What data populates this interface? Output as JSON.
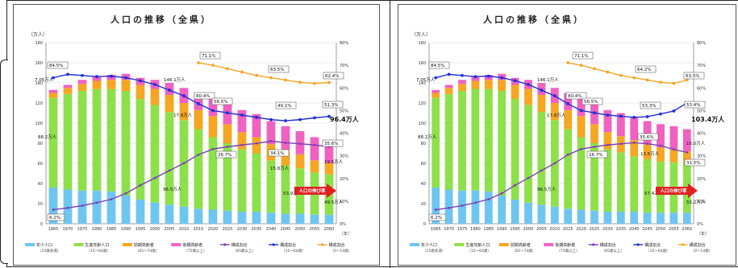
{
  "chart_data": [
    {
      "type": "bar",
      "title": "人口の推移（全県）",
      "ylabel": "（万人）",
      "y2label": "",
      "xlabel_unit": "（年）",
      "ylim": [
        0,
        180
      ],
      "y2lim": [
        0,
        80
      ],
      "yticks": [
        "0",
        "20",
        "40",
        "60",
        "80",
        "100",
        "120",
        "140",
        "160",
        "180"
      ],
      "y2ticks": [
        "0%",
        "10%",
        "20%",
        "30%",
        "40%",
        "50%",
        "60%",
        "70%",
        "80%"
      ],
      "categories": [
        "1965",
        "1970",
        "1975",
        "1980",
        "1985",
        "1990",
        "1995",
        "2000",
        "2005",
        "2010",
        "2015",
        "2020",
        "2025",
        "2030",
        "2035",
        "2040",
        "2045",
        "2050",
        "2055",
        "2060"
      ],
      "stack_series": [
        {
          "name": "年少人口",
          "sub": "（15歳未満）",
          "color": "#6ec6f0",
          "values": [
            36,
            34,
            33,
            33,
            32,
            28,
            24,
            21,
            19,
            17,
            15,
            14,
            13,
            12,
            12,
            11,
            10,
            10,
            9,
            9
          ]
        },
        {
          "name": "生産年齢人口",
          "sub": "（15〜64歳）",
          "color": "#8ee04a",
          "values": [
            89,
            95,
            99,
            101,
            102,
            104,
            100,
            97,
            92,
            86,
            79,
            72,
            67,
            62,
            58,
            52,
            48,
            45,
            42,
            40
          ]
        },
        {
          "name": "前期高齢者",
          "sub": "（65〜74歳）",
          "color": "#f5a623",
          "values": [
            5,
            6,
            7,
            8,
            9,
            11,
            14,
            16,
            17,
            17,
            19,
            21,
            19,
            17,
            16,
            16,
            16,
            14,
            12,
            11
          ]
        },
        {
          "name": "後期高齢者",
          "sub": "（75歳以上）",
          "color": "#f062c0",
          "values": [
            3,
            3,
            4,
            4,
            5,
            6,
            7,
            9,
            12,
            15,
            17,
            18,
            20,
            22,
            23,
            23,
            23,
            23,
            23,
            23
          ]
        }
      ],
      "line_series": [
        {
          "name": "構成割合",
          "sub": "（65歳以上）",
          "color": "#7b3fb5",
          "values": [
            6.2,
            7.0,
            8.0,
            9.3,
            10.8,
            13.4,
            17.0,
            20.2,
            23.5,
            26.7,
            30.5,
            33.0,
            34.0,
            34.8,
            35.5,
            36.5,
            35.8,
            35.3,
            34.8,
            34.1
          ]
        },
        {
          "name": "構成割合",
          "sub": "（15〜64歳）",
          "color": "#1f2fd6",
          "values": [
            64.5,
            66.0,
            65.5,
            65.0,
            65.2,
            64.5,
            63.2,
            61.5,
            59.0,
            56.5,
            53.0,
            50.0,
            49.0,
            48.0,
            47.0,
            46.0,
            45.5,
            46.0,
            46.8,
            47.4
          ]
        },
        {
          "name": "構成割合",
          "sub": "（0〜14歳）",
          "color": "#f5a623",
          "values": [
            null,
            null,
            null,
            null,
            null,
            null,
            null,
            null,
            null,
            null,
            71.1,
            70.0,
            68.5,
            67.0,
            65.5,
            64.5,
            63.5,
            62.5,
            62.0,
            62.4
          ]
        }
      ],
      "annotations": [
        "84.5%",
        "7.05万人",
        "88.2万人",
        "6.2%",
        "146.1万人",
        "80.4%",
        "56.5%",
        "17.8万人",
        "26.7%",
        "96.5万人",
        "71.1%",
        "63.5%",
        "62.4%",
        "49.1%",
        "51.3%",
        "96.4万人",
        "34.1%",
        "35.6%",
        "15.8万人",
        "19.5万人",
        "53.9万人",
        "49.5万人"
      ],
      "callout": "人口の伸び率"
    },
    {
      "type": "bar",
      "title": "人口の推移（全県）",
      "ylabel": "（万人）",
      "y2label": "",
      "xlabel_unit": "（年）",
      "ylim": [
        0,
        180
      ],
      "y2lim": [
        0,
        80
      ],
      "yticks": [
        "0",
        "20",
        "40",
        "60",
        "80",
        "100",
        "120",
        "140",
        "160",
        "180"
      ],
      "y2ticks": [
        "0%",
        "10%",
        "20%",
        "30%",
        "40%",
        "50%",
        "60%",
        "70%",
        "80%"
      ],
      "categories": [
        "1965",
        "1970",
        "1975",
        "1980",
        "1985",
        "1990",
        "1995",
        "2000",
        "2005",
        "2010",
        "2015",
        "2020",
        "2025",
        "2030",
        "2035",
        "2040",
        "2045",
        "2050",
        "2055",
        "2060"
      ],
      "stack_series": [
        {
          "name": "年少人口",
          "sub": "（15歳未満）",
          "color": "#6ec6f0",
          "values": [
            36,
            34,
            33,
            33,
            32,
            28,
            24,
            21,
            19,
            17,
            15,
            14,
            13,
            12,
            12,
            12,
            11,
            11,
            11,
            11
          ]
        },
        {
          "name": "生産年齢人口",
          "sub": "（15〜64歳）",
          "color": "#8ee04a",
          "values": [
            89,
            95,
            99,
            101,
            102,
            104,
            100,
            97,
            92,
            86,
            79,
            72,
            67,
            62,
            59,
            55,
            53,
            51,
            50,
            49
          ]
        },
        {
          "name": "前期高齢者",
          "sub": "（65〜74歳）",
          "color": "#f5a623",
          "values": [
            5,
            6,
            7,
            8,
            9,
            11,
            14,
            16,
            17,
            17,
            19,
            21,
            19,
            17,
            16,
            16,
            15,
            14,
            13,
            12
          ]
        },
        {
          "name": "後期高齢者",
          "sub": "（75歳以上）",
          "color": "#f062c0",
          "values": [
            3,
            3,
            4,
            4,
            5,
            6,
            7,
            9,
            12,
            15,
            17,
            18,
            20,
            22,
            23,
            23,
            23,
            23,
            23,
            22
          ]
        }
      ],
      "line_series": [
        {
          "name": "構成割合",
          "sub": "（65歳以上）",
          "color": "#7b3fb5",
          "values": [
            6.2,
            7.0,
            8.0,
            9.3,
            10.8,
            13.4,
            17.0,
            20.2,
            23.5,
            26.7,
            30.5,
            33.0,
            34.0,
            34.8,
            35.3,
            35.8,
            35.3,
            34.5,
            32.8,
            31.5
          ]
        },
        {
          "name": "構成割合",
          "sub": "（15〜64歳）",
          "color": "#1f2fd6",
          "values": [
            64.5,
            66.0,
            65.5,
            65.0,
            65.2,
            64.5,
            63.2,
            61.5,
            59.0,
            56.5,
            53.0,
            50.0,
            49.0,
            48.0,
            47.5,
            47.0,
            47.3,
            48.5,
            49.8,
            53.4
          ]
        },
        {
          "name": "構成割合",
          "sub": "（0〜14歳）",
          "color": "#f5a623",
          "values": [
            null,
            null,
            null,
            null,
            null,
            null,
            null,
            null,
            null,
            null,
            71.1,
            70.0,
            68.5,
            67.0,
            65.5,
            64.5,
            63.5,
            62.5,
            62.0,
            63.5
          ]
        }
      ],
      "annotations": [
        "84.5%",
        "7.05万人",
        "88.2万人",
        "6.2%",
        "146.1万人",
        "80.4%",
        "56.5%",
        "17.8万人",
        "26.7%",
        "96.5万人",
        "71.1%",
        "64.2%",
        "63.5%",
        "53.3%",
        "53.4%",
        "103.4万人",
        "35.6%",
        "15.0万人",
        "13.5万人",
        "31.5%",
        "57.4万人",
        "55.2万人"
      ],
      "callout": "人口の伸び率"
    }
  ]
}
